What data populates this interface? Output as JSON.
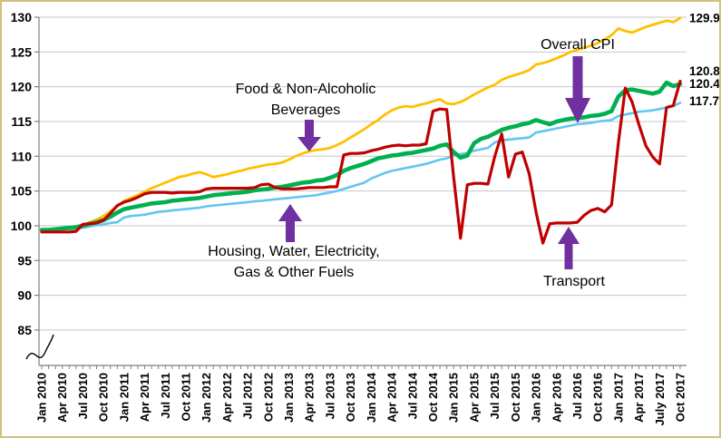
{
  "chart_data": {
    "type": "line",
    "title": "",
    "xlabel": "",
    "ylabel": "",
    "x_unit": "month",
    "x_start": "Jan 2010",
    "x_end": "Oct 2017",
    "ylim": [
      85,
      130
    ],
    "y_ticks": [
      85,
      90,
      95,
      100,
      105,
      110,
      115,
      120,
      125,
      130
    ],
    "y_axis_break": true,
    "grid": true,
    "legend_position": "none (labels with arrows inside plot)",
    "x_tick_labels": [
      "Jan 2010",
      "Apr 2010",
      "Jul 2010",
      "Oct 2010",
      "Jan 2011",
      "Apr 2011",
      "Jul 2011",
      "Oct 2011",
      "Jan 2012",
      "Apr 2012",
      "Jul 2012",
      "Oct 2012",
      "Jan 2013",
      "Apr 2013",
      "Jul 2013",
      "Oct 2013",
      "Jan 2014",
      "Apr 2014",
      "Jul 2014",
      "Oct 2014",
      "Jan 2015",
      "Apr 2015",
      "Jul 2015",
      "Oct 2015",
      "Jan 2016",
      "Apr 2016",
      "Jul 2016",
      "Oct 2016",
      "Jan 2017",
      "Apr 2017",
      "July 2017",
      "Oct 2017"
    ],
    "series": [
      {
        "id": "food",
        "name": "Food & Non-Alcoholic Beverages",
        "color": "#FFC000",
        "end_label": "129.9",
        "values": [
          99.4,
          99.3,
          99.3,
          99.4,
          99.6,
          99.8,
          100.1,
          100.5,
          100.9,
          101.4,
          102.1,
          102.8,
          103.6,
          104.0,
          104.4,
          104.9,
          105.4,
          105.8,
          106.2,
          106.6,
          107.0,
          107.2,
          107.5,
          107.7,
          107.4,
          107.0,
          107.2,
          107.4,
          107.7,
          107.9,
          108.2,
          108.4,
          108.6,
          108.8,
          108.9,
          109.1,
          109.5,
          110.0,
          110.4,
          110.7,
          110.9,
          111.0,
          111.2,
          111.6,
          112.1,
          112.7,
          113.3,
          113.9,
          114.6,
          115.2,
          116.0,
          116.6,
          117.0,
          117.2,
          117.1,
          117.4,
          117.6,
          117.9,
          118.2,
          117.6,
          117.5,
          117.8,
          118.3,
          118.9,
          119.4,
          119.9,
          120.3,
          121.0,
          121.4,
          121.7,
          122.0,
          122.4,
          123.2,
          123.4,
          123.7,
          124.1,
          124.5,
          125.0,
          125.3,
          125.6,
          125.9,
          126.3,
          126.8,
          127.4,
          128.4,
          128.0,
          127.8,
          128.2,
          128.6,
          128.9,
          129.2,
          129.5,
          129.3,
          129.9
        ]
      },
      {
        "id": "overall",
        "name": "Overall CPI",
        "color": "#00B050",
        "end_label": "120.4",
        "values": [
          99.4,
          99.4,
          99.5,
          99.6,
          99.7,
          99.8,
          100.0,
          100.3,
          100.5,
          100.8,
          101.3,
          101.9,
          102.4,
          102.6,
          102.8,
          103.0,
          103.2,
          103.3,
          103.4,
          103.6,
          103.7,
          103.8,
          103.9,
          104.0,
          104.2,
          104.4,
          104.5,
          104.6,
          104.7,
          104.8,
          104.9,
          105.1,
          105.2,
          105.3,
          105.5,
          105.6,
          105.8,
          106.0,
          106.2,
          106.3,
          106.5,
          106.6,
          106.9,
          107.3,
          107.9,
          108.3,
          108.6,
          108.9,
          109.3,
          109.7,
          109.9,
          110.1,
          110.2,
          110.4,
          110.5,
          110.7,
          110.9,
          111.1,
          111.5,
          111.7,
          110.6,
          109.8,
          110.1,
          111.9,
          112.5,
          112.8,
          113.3,
          113.8,
          114.1,
          114.3,
          114.6,
          114.8,
          115.2,
          114.9,
          114.6,
          115.0,
          115.2,
          115.4,
          115.5,
          115.6,
          115.8,
          115.9,
          116.1,
          116.5,
          118.6,
          119.5,
          119.6,
          119.4,
          119.2,
          119.0,
          119.3,
          120.6,
          120.1,
          120.4
        ]
      },
      {
        "id": "transport",
        "name": "Transport",
        "color": "#C00000",
        "end_label": "120.8",
        "values": [
          99.1,
          99.1,
          99.1,
          99.1,
          99.1,
          99.2,
          100.2,
          100.3,
          100.4,
          100.8,
          101.8,
          102.9,
          103.4,
          103.7,
          104.1,
          104.6,
          104.8,
          104.8,
          104.8,
          104.7,
          104.8,
          104.8,
          104.8,
          104.9,
          105.3,
          105.4,
          105.4,
          105.4,
          105.4,
          105.4,
          105.4,
          105.5,
          105.9,
          106.0,
          105.5,
          105.3,
          105.3,
          105.3,
          105.4,
          105.5,
          105.5,
          105.5,
          105.6,
          105.6,
          110.2,
          110.4,
          110.4,
          110.5,
          110.8,
          111.0,
          111.3,
          111.5,
          111.6,
          111.5,
          111.6,
          111.6,
          111.8,
          116.5,
          116.8,
          116.7,
          107.0,
          98.2,
          105.9,
          106.1,
          106.1,
          106.0,
          110.0,
          113.2,
          107.0,
          110.3,
          110.6,
          107.5,
          102.0,
          97.5,
          100.3,
          100.4,
          100.4,
          100.4,
          100.5,
          101.5,
          102.2,
          102.5,
          102.0,
          103.0,
          112.0,
          119.8,
          117.8,
          114.5,
          111.5,
          109.9,
          108.9,
          117.0,
          117.3,
          120.8
        ]
      },
      {
        "id": "housing",
        "name": "Housing, Water, Electricity, Gas & Other Fuels",
        "color": "#63C5F2",
        "end_label": "117.7",
        "values": [
          99.4,
          99.4,
          99.4,
          99.5,
          99.5,
          99.6,
          99.7,
          99.9,
          100.1,
          100.2,
          100.4,
          100.5,
          101.2,
          101.4,
          101.5,
          101.6,
          101.8,
          102.0,
          102.1,
          102.2,
          102.3,
          102.4,
          102.5,
          102.6,
          102.8,
          102.9,
          103.0,
          103.1,
          103.2,
          103.3,
          103.4,
          103.5,
          103.6,
          103.7,
          103.8,
          103.9,
          104.0,
          104.1,
          104.2,
          104.3,
          104.4,
          104.6,
          104.8,
          105.0,
          105.3,
          105.6,
          105.9,
          106.2,
          106.8,
          107.2,
          107.6,
          107.9,
          108.1,
          108.3,
          108.5,
          108.7,
          108.9,
          109.2,
          109.5,
          109.7,
          110.1,
          110.3,
          110.5,
          110.8,
          111.0,
          111.2,
          112.0,
          112.3,
          112.4,
          112.5,
          112.6,
          112.7,
          113.4,
          113.6,
          113.8,
          114.0,
          114.2,
          114.4,
          114.6,
          114.7,
          114.8,
          115.0,
          115.1,
          115.2,
          115.8,
          116.0,
          116.2,
          116.4,
          116.5,
          116.6,
          116.8,
          117.0,
          117.2,
          117.7
        ]
      }
    ],
    "annotations": [
      {
        "id": "food-label",
        "text_lines": [
          "Food & Non-Alcoholic",
          "Beverages"
        ],
        "arrow": "down",
        "arrow_color": "#7030A0",
        "points_to": "Food & Non-Alcoholic Beverages"
      },
      {
        "id": "overall-label",
        "text_lines": [
          "Overall CPI"
        ],
        "arrow": "down",
        "arrow_color": "#7030A0",
        "points_to": "Overall CPI"
      },
      {
        "id": "housing-label",
        "text_lines": [
          "Housing, Water, Electricity,",
          "Gas & Other Fuels"
        ],
        "arrow": "up",
        "arrow_color": "#7030A0",
        "points_to": "Housing, Water, Electricity, Gas & Other Fuels"
      },
      {
        "id": "transport-label",
        "text_lines": [
          "Transport"
        ],
        "arrow": "up",
        "arrow_color": "#7030A0",
        "points_to": "Transport"
      }
    ],
    "colors": {
      "grid": "#C6C6C6",
      "axis": "#7F7F7F",
      "border": "#D2C07E",
      "annotation_arrow": "#7030A0"
    }
  }
}
